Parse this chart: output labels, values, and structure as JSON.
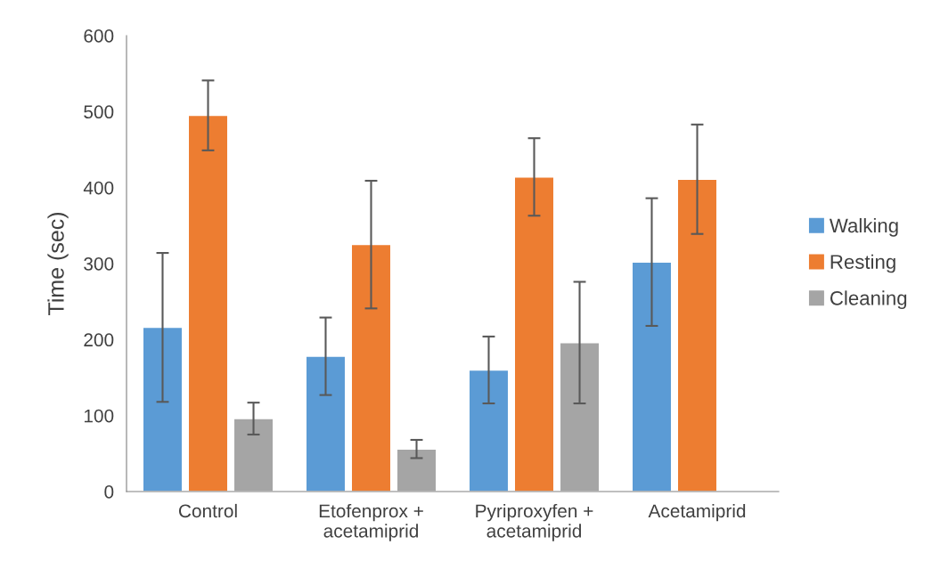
{
  "chart_data": {
    "type": "bar",
    "ylabel": "Time (sec)",
    "categories": [
      "Control",
      "Etofenprox +\nacetamiprid",
      "Pyriproxyfen +\nacetamiprid",
      "Acetamiprid"
    ],
    "series": [
      {
        "name": "Walking",
        "color": "#5b9bd5",
        "values": [
          216,
          178,
          160,
          302
        ],
        "errors": [
          98,
          51,
          44,
          84
        ]
      },
      {
        "name": "Resting",
        "color": "#ed7d31",
        "values": [
          495,
          325,
          414,
          411
        ],
        "errors": [
          46,
          84,
          51,
          72
        ]
      },
      {
        "name": "Cleaning",
        "color": "#a5a5a5",
        "values": [
          96,
          56,
          196,
          1
        ],
        "errors": [
          21,
          12,
          80,
          null
        ]
      }
    ],
    "ylim": [
      0,
      600
    ],
    "yticks": [
      0,
      100,
      200,
      300,
      400,
      500,
      600
    ],
    "grid": false,
    "legend": "right"
  }
}
